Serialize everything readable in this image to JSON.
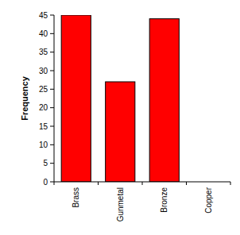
{
  "chart_data": {
    "type": "bar",
    "y_label": "Frequency",
    "categories": [
      "Brass",
      "Gunmetal",
      "Bronze",
      "Copper"
    ],
    "values": [
      45,
      27,
      44,
      0
    ],
    "color": "#ff0000",
    "ylim": [
      0,
      45
    ],
    "yticks": [
      0,
      5,
      10,
      15,
      20,
      25,
      30,
      35,
      40,
      45
    ],
    "grid": false
  }
}
